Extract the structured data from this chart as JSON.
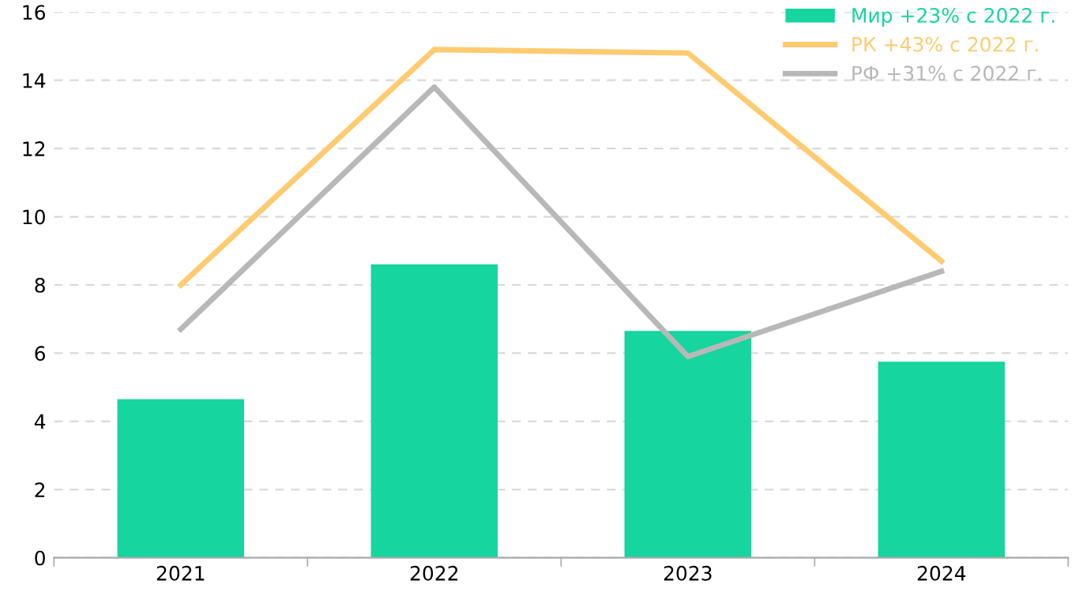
{
  "chart_data": {
    "type": "bar",
    "categories": [
      "2021",
      "2022",
      "2023",
      "2024"
    ],
    "series": [
      {
        "name": "Мир +23% с 2022 г.",
        "color": "#16d59e",
        "values": [
          4.65,
          8.6,
          6.65,
          5.75
        ]
      },
      {
        "name": "РК +43% с 2022 г.",
        "color": "#ffcb70",
        "type": "line",
        "values": [
          8.0,
          14.9,
          14.8,
          8.7
        ]
      },
      {
        "name": "РФ +31% с 2022 г.",
        "color": "#b8b8b8",
        "type": "line",
        "values": [
          6.7,
          13.8,
          5.9,
          8.4
        ]
      }
    ],
    "ylim": [
      0,
      16
    ],
    "yticks": [
      0,
      2,
      4,
      6,
      8,
      10,
      12,
      14,
      16
    ],
    "grid": "y",
    "legend": "top right",
    "marker": "none",
    "line_style": "solid"
  }
}
